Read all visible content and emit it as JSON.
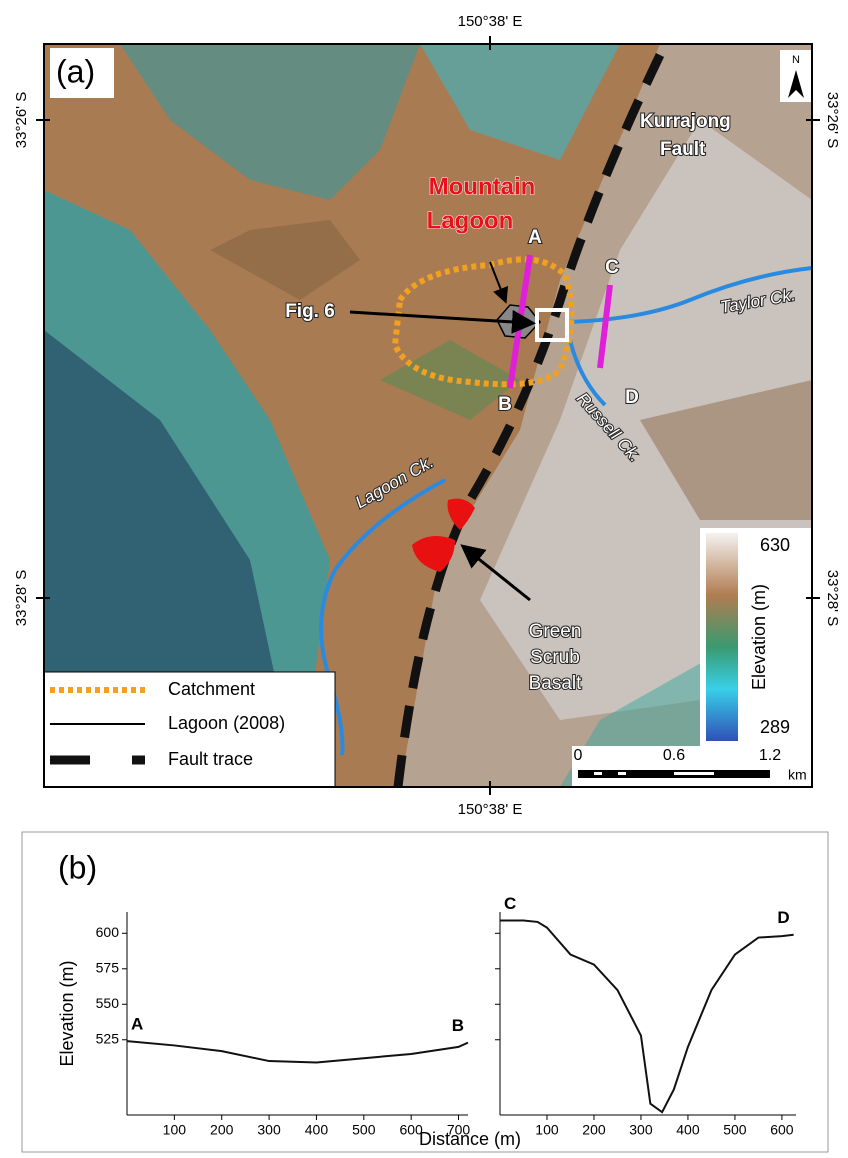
{
  "map": {
    "panel_label": "(a)",
    "lon_label": "150°38' E",
    "lat_labels": [
      "33°26' S",
      "33°28' S"
    ],
    "labels": {
      "lagoon": [
        "Mountain",
        "Lagoon"
      ],
      "fault": [
        "Kurrajong",
        "Fault"
      ],
      "fig": "Fig. 6",
      "a": "A",
      "b": "B",
      "c": "C",
      "d": "D",
      "taylor": "Taylor Ck.",
      "russell": "Russell Ck.",
      "lagoon_ck": "Lagoon Ck.",
      "basalt": [
        "Green",
        "Scrub",
        "Basalt"
      ],
      "north": "N"
    },
    "legend": [
      "Catchment",
      "Lagoon (2008)",
      "Fault trace"
    ],
    "colorbar": {
      "label": "Elevation (m)",
      "max": 630,
      "min": 289
    },
    "scale_bar": {
      "ticks": [
        0,
        0.6,
        1.2
      ],
      "unit": "km"
    }
  },
  "panel_b": {
    "label": "(b)",
    "xlabel": "Distance (m)"
  },
  "chart_data": [
    {
      "type": "line",
      "ylabel": "Elevation (m)",
      "start_label": "A",
      "end_label": "B",
      "x": [
        0,
        100,
        200,
        300,
        400,
        500,
        600,
        700,
        720
      ],
      "series": [
        {
          "color": "#111111",
          "values": [
            524,
            521,
            517,
            510,
            509,
            512,
            515,
            520,
            523
          ]
        }
      ],
      "xlim": [
        0,
        720
      ],
      "ylim": [
        472,
        615
      ],
      "xticks": [
        100,
        200,
        300,
        400,
        500,
        600,
        700
      ],
      "yticks": [
        525,
        550,
        575,
        600
      ],
      "show_ytick_labels": true
    },
    {
      "type": "line",
      "start_label": "C",
      "end_label": "D",
      "x": [
        0,
        50,
        80,
        100,
        150,
        200,
        250,
        300,
        320,
        345,
        370,
        400,
        450,
        500,
        550,
        600,
        625
      ],
      "series": [
        {
          "color": "#111111",
          "values": [
            609,
            609,
            608,
            604,
            585,
            578,
            560,
            528,
            480,
            474,
            490,
            520,
            560,
            585,
            597,
            598,
            599
          ]
        }
      ],
      "xlim": [
        0,
        630
      ],
      "ylim": [
        472,
        615
      ],
      "xticks": [
        100,
        200,
        300,
        400,
        500,
        600
      ],
      "yticks": [
        525,
        550,
        575,
        600
      ],
      "show_ytick_labels": false
    }
  ]
}
